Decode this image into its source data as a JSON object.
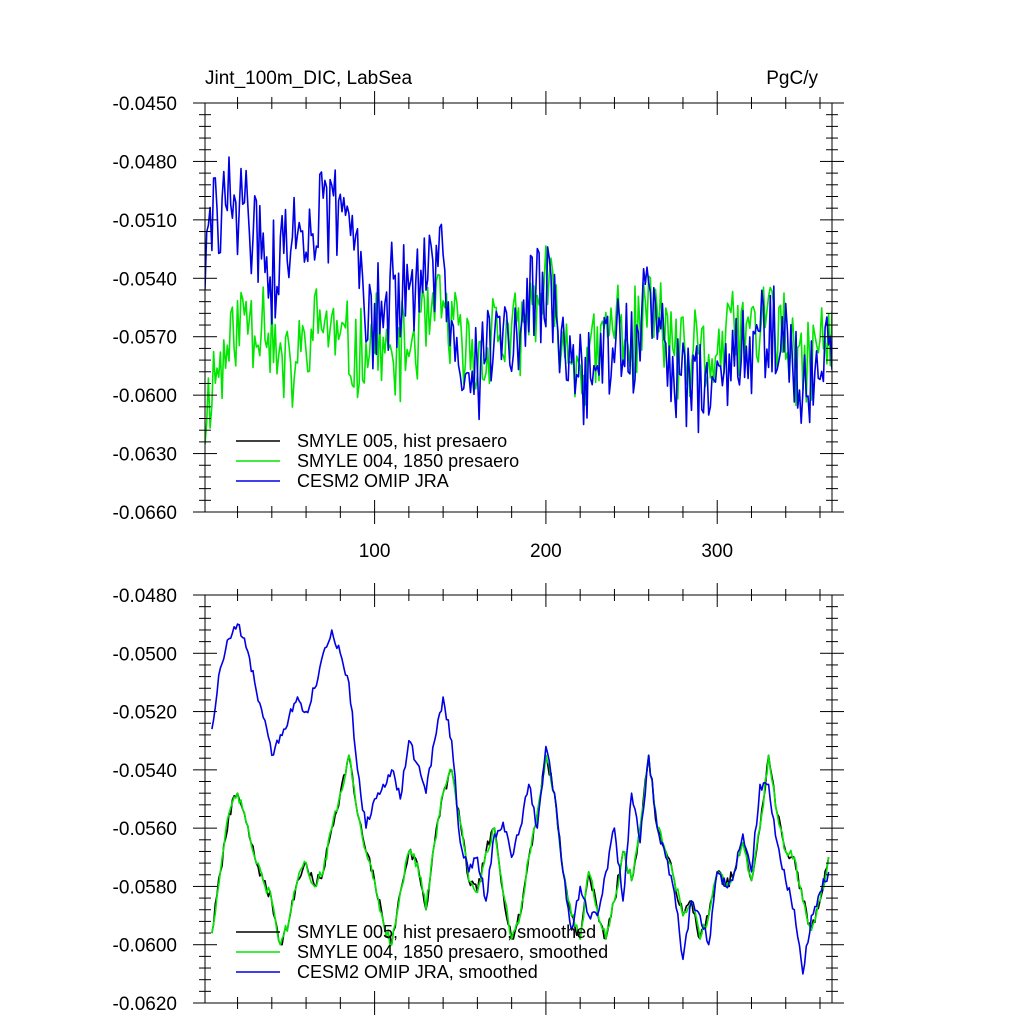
{
  "title": "Jint_100m_DIC, LabSea",
  "units": "PgC/y",
  "colors": {
    "smyle005": "#000000",
    "smyle004": "#00e600",
    "omip": "#0000e6"
  },
  "chart_data": [
    {
      "type": "line",
      "title": "Jint_100m_DIC, LabSea",
      "units_label": "PgC/y",
      "xlim": [
        1,
        367
      ],
      "ylim": [
        -0.066,
        -0.045
      ],
      "x_ticks": [
        100,
        200,
        300
      ],
      "y_ticks": [
        -0.045,
        -0.048,
        -0.051,
        -0.054,
        -0.057,
        -0.06,
        -0.063,
        -0.066
      ],
      "y_tick_labels": [
        "-0.0450",
        "-0.0480",
        "-0.0510",
        "-0.0540",
        "-0.0570",
        "-0.0600",
        "-0.0630",
        "-0.0660"
      ],
      "x_tick_labels": [
        "100",
        "200",
        "300"
      ],
      "legend_position": "bottom-left",
      "series": [
        {
          "key": "smyle005",
          "name": "SMYLE 005, hist presaero",
          "color": "#000000",
          "anchors_x": [
            1,
            5,
            10,
            15,
            20,
            25,
            30,
            35,
            40,
            45,
            50,
            60,
            70,
            80,
            90,
            100,
            110,
            120,
            130,
            140,
            150,
            160,
            170,
            180,
            190,
            200,
            210,
            220,
            230,
            240,
            250,
            260,
            270,
            280,
            290,
            300,
            310,
            320,
            330,
            340,
            350,
            360,
            367
          ],
          "anchors_y": [
            -0.0615,
            -0.059,
            -0.0585,
            -0.0575,
            -0.0565,
            -0.0555,
            -0.0565,
            -0.0555,
            -0.057,
            -0.0585,
            -0.059,
            -0.0575,
            -0.056,
            -0.0575,
            -0.058,
            -0.057,
            -0.0585,
            -0.0575,
            -0.0565,
            -0.0555,
            -0.0575,
            -0.0585,
            -0.0565,
            -0.0575,
            -0.056,
            -0.0545,
            -0.0575,
            -0.0585,
            -0.058,
            -0.056,
            -0.0575,
            -0.0555,
            -0.0565,
            -0.0585,
            -0.058,
            -0.058,
            -0.0565,
            -0.057,
            -0.0555,
            -0.0575,
            -0.059,
            -0.057,
            -0.0575
          ],
          "amp": 0.0028,
          "seed": 11,
          "visible": false
        },
        {
          "key": "smyle004",
          "name": "SMYLE 004, 1850 presaero",
          "color": "#00e600",
          "anchors_x": [
            1,
            5,
            10,
            15,
            20,
            25,
            30,
            35,
            40,
            45,
            50,
            60,
            70,
            80,
            90,
            100,
            110,
            120,
            130,
            140,
            150,
            160,
            170,
            180,
            190,
            200,
            210,
            220,
            230,
            240,
            250,
            260,
            270,
            280,
            290,
            300,
            310,
            320,
            330,
            340,
            350,
            360,
            367
          ],
          "anchors_y": [
            -0.0615,
            -0.059,
            -0.0585,
            -0.0575,
            -0.0565,
            -0.0555,
            -0.0565,
            -0.0555,
            -0.057,
            -0.0585,
            -0.059,
            -0.0575,
            -0.056,
            -0.0575,
            -0.058,
            -0.057,
            -0.0585,
            -0.0575,
            -0.0565,
            -0.0555,
            -0.0575,
            -0.0585,
            -0.0565,
            -0.0575,
            -0.056,
            -0.0545,
            -0.0575,
            -0.0585,
            -0.058,
            -0.056,
            -0.0575,
            -0.0555,
            -0.0565,
            -0.0585,
            -0.058,
            -0.058,
            -0.0565,
            -0.057,
            -0.0555,
            -0.0575,
            -0.059,
            -0.057,
            -0.0575
          ],
          "amp": 0.0028,
          "seed": 11,
          "visible": true
        },
        {
          "key": "omip",
          "name": "CESM2 OMIP JRA",
          "color": "#0000e6",
          "anchors_x": [
            1,
            5,
            10,
            15,
            20,
            25,
            30,
            35,
            40,
            45,
            50,
            60,
            70,
            80,
            90,
            100,
            110,
            120,
            130,
            140,
            150,
            160,
            170,
            180,
            190,
            200,
            210,
            220,
            230,
            240,
            250,
            260,
            270,
            280,
            290,
            300,
            310,
            320,
            330,
            340,
            350,
            360,
            367
          ],
          "anchors_y": [
            -0.053,
            -0.0515,
            -0.0505,
            -0.0495,
            -0.05,
            -0.051,
            -0.0515,
            -0.0525,
            -0.054,
            -0.053,
            -0.052,
            -0.0515,
            -0.051,
            -0.0505,
            -0.0525,
            -0.056,
            -0.055,
            -0.055,
            -0.0545,
            -0.0535,
            -0.0575,
            -0.0585,
            -0.057,
            -0.0575,
            -0.0555,
            -0.0545,
            -0.0575,
            -0.0595,
            -0.059,
            -0.057,
            -0.0575,
            -0.0555,
            -0.0575,
            -0.0595,
            -0.0595,
            -0.059,
            -0.0575,
            -0.058,
            -0.0565,
            -0.058,
            -0.06,
            -0.058,
            -0.0575
          ],
          "amp": 0.0032,
          "seed": 29,
          "visible": true
        }
      ]
    },
    {
      "type": "line",
      "xlim": [
        1,
        367
      ],
      "ylim": [
        -0.062,
        -0.048
      ],
      "x_ticks": [
        100,
        200,
        300
      ],
      "y_ticks": [
        -0.048,
        -0.05,
        -0.052,
        -0.054,
        -0.056,
        -0.058,
        -0.06,
        -0.062
      ],
      "y_tick_labels": [
        "-0.0480",
        "-0.0500",
        "-0.0520",
        "-0.0540",
        "-0.0560",
        "-0.0580",
        "-0.0600",
        "-0.0620"
      ],
      "legend_position": "bottom-left",
      "series": [
        {
          "key": "smyle005_s",
          "name": "SMYLE 005, hist presaero, smoothed",
          "color": "#000000",
          "x": [
            5,
            10,
            15,
            20,
            25,
            30,
            35,
            40,
            45,
            50,
            55,
            60,
            65,
            70,
            75,
            80,
            85,
            90,
            95,
            100,
            105,
            110,
            115,
            120,
            125,
            130,
            135,
            140,
            145,
            150,
            155,
            160,
            165,
            170,
            175,
            180,
            185,
            190,
            195,
            200,
            205,
            210,
            215,
            220,
            225,
            230,
            235,
            240,
            245,
            250,
            255,
            260,
            265,
            270,
            275,
            280,
            285,
            290,
            295,
            300,
            305,
            310,
            315,
            320,
            325,
            330,
            335,
            340,
            345,
            350,
            355,
            360,
            365
          ],
          "y": [
            -0.0596,
            -0.0575,
            -0.0555,
            -0.0548,
            -0.0558,
            -0.057,
            -0.0578,
            -0.0585,
            -0.06,
            -0.0592,
            -0.0578,
            -0.0572,
            -0.058,
            -0.0575,
            -0.056,
            -0.0548,
            -0.0535,
            -0.0555,
            -0.0568,
            -0.0578,
            -0.0592,
            -0.06,
            -0.0582,
            -0.0568,
            -0.0572,
            -0.0588,
            -0.0565,
            -0.0548,
            -0.054,
            -0.0558,
            -0.0578,
            -0.0582,
            -0.0568,
            -0.056,
            -0.0582,
            -0.0598,
            -0.059,
            -0.057,
            -0.0555,
            -0.0535,
            -0.0548,
            -0.0575,
            -0.059,
            -0.0598,
            -0.0575,
            -0.0588,
            -0.0598,
            -0.0585,
            -0.0568,
            -0.0578,
            -0.056,
            -0.0535,
            -0.056,
            -0.0568,
            -0.0578,
            -0.059,
            -0.0585,
            -0.0598,
            -0.059,
            -0.0575,
            -0.058,
            -0.0575,
            -0.0565,
            -0.0578,
            -0.056,
            -0.0535,
            -0.0555,
            -0.0568,
            -0.057,
            -0.0585,
            -0.0595,
            -0.0585,
            -0.057
          ],
          "visible": true
        },
        {
          "key": "smyle004_s",
          "name": "SMYLE 004, 1850 presaero, smoothed",
          "color": "#00e600",
          "x": [
            5,
            10,
            15,
            20,
            25,
            30,
            35,
            40,
            45,
            50,
            55,
            60,
            65,
            70,
            75,
            80,
            85,
            90,
            95,
            100,
            105,
            110,
            115,
            120,
            125,
            130,
            135,
            140,
            145,
            150,
            155,
            160,
            165,
            170,
            175,
            180,
            185,
            190,
            195,
            200,
            205,
            210,
            215,
            220,
            225,
            230,
            235,
            240,
            245,
            250,
            255,
            260,
            265,
            270,
            275,
            280,
            285,
            290,
            295,
            300,
            305,
            310,
            315,
            320,
            325,
            330,
            335,
            340,
            345,
            350,
            355,
            360,
            365
          ],
          "y": [
            -0.0596,
            -0.0575,
            -0.0555,
            -0.0548,
            -0.0558,
            -0.057,
            -0.0578,
            -0.0585,
            -0.06,
            -0.0592,
            -0.0578,
            -0.0572,
            -0.058,
            -0.0575,
            -0.056,
            -0.0548,
            -0.0535,
            -0.0555,
            -0.0568,
            -0.0578,
            -0.0592,
            -0.06,
            -0.0582,
            -0.0568,
            -0.0572,
            -0.0588,
            -0.0565,
            -0.0548,
            -0.054,
            -0.0558,
            -0.0578,
            -0.0582,
            -0.0568,
            -0.056,
            -0.0582,
            -0.0598,
            -0.059,
            -0.057,
            -0.0555,
            -0.0535,
            -0.0548,
            -0.0575,
            -0.059,
            -0.0598,
            -0.0575,
            -0.0588,
            -0.0598,
            -0.0585,
            -0.0568,
            -0.0578,
            -0.056,
            -0.0535,
            -0.056,
            -0.0568,
            -0.0578,
            -0.059,
            -0.0585,
            -0.0598,
            -0.059,
            -0.0575,
            -0.058,
            -0.0575,
            -0.0565,
            -0.0578,
            -0.056,
            -0.0535,
            -0.0555,
            -0.0568,
            -0.057,
            -0.0585,
            -0.0595,
            -0.0585,
            -0.057
          ],
          "visible": true
        },
        {
          "key": "omip_s",
          "name": "CESM2 OMIP JRA, smoothed",
          "color": "#0000e6",
          "x": [
            5,
            10,
            15,
            20,
            25,
            30,
            35,
            40,
            45,
            50,
            55,
            60,
            65,
            70,
            75,
            80,
            85,
            90,
            95,
            100,
            105,
            110,
            115,
            120,
            125,
            130,
            135,
            140,
            145,
            150,
            155,
            160,
            165,
            170,
            175,
            180,
            185,
            190,
            195,
            200,
            205,
            210,
            215,
            220,
            225,
            230,
            235,
            240,
            245,
            250,
            255,
            260,
            265,
            270,
            275,
            280,
            285,
            290,
            295,
            300,
            305,
            310,
            315,
            320,
            325,
            330,
            335,
            340,
            345,
            350,
            355,
            360,
            365
          ],
          "y": [
            -0.0526,
            -0.0505,
            -0.0495,
            -0.049,
            -0.0498,
            -0.051,
            -0.0522,
            -0.0535,
            -0.0528,
            -0.0522,
            -0.0515,
            -0.052,
            -0.0512,
            -0.05,
            -0.0492,
            -0.05,
            -0.051,
            -0.054,
            -0.056,
            -0.055,
            -0.0545,
            -0.054,
            -0.055,
            -0.053,
            -0.0538,
            -0.0548,
            -0.053,
            -0.0515,
            -0.053,
            -0.0565,
            -0.0575,
            -0.057,
            -0.0585,
            -0.0562,
            -0.0558,
            -0.057,
            -0.056,
            -0.0545,
            -0.056,
            -0.0532,
            -0.0548,
            -0.0575,
            -0.0595,
            -0.058,
            -0.059,
            -0.059,
            -0.0575,
            -0.056,
            -0.0585,
            -0.0548,
            -0.0565,
            -0.0535,
            -0.056,
            -0.057,
            -0.0582,
            -0.0605,
            -0.0585,
            -0.059,
            -0.06,
            -0.0575,
            -0.058,
            -0.0575,
            -0.0562,
            -0.0575,
            -0.0545,
            -0.0545,
            -0.0565,
            -0.0578,
            -0.0588,
            -0.061,
            -0.059,
            -0.0582,
            -0.0575
          ],
          "visible": true
        }
      ]
    }
  ]
}
